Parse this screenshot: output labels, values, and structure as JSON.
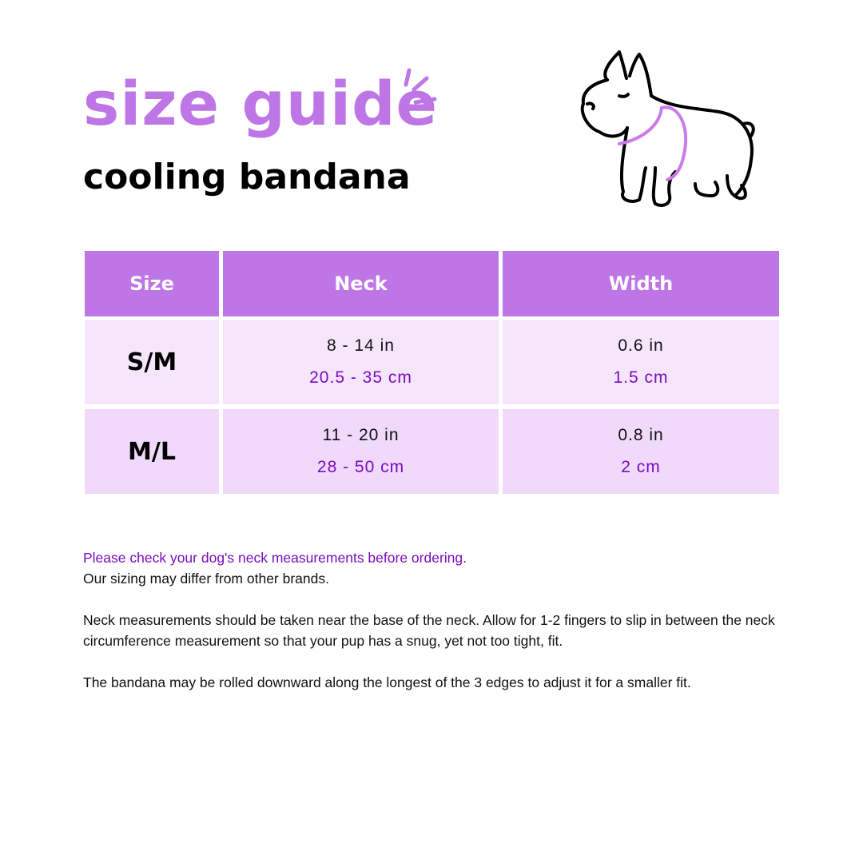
{
  "header": {
    "title": "size guide",
    "subtitle": "cooling bandana"
  },
  "icons": {
    "sparkle": "sparkle-lines-icon",
    "dog": "french-bulldog-illustration"
  },
  "colors": {
    "accent": "#BE76E6",
    "text_accent": "#7A0CBF",
    "row1": "#F6E6FC",
    "row2": "#F0D9FB"
  },
  "table": {
    "columns": [
      "Size",
      "Neck",
      "Width"
    ],
    "rows": [
      {
        "size": "S/M",
        "neck_in": "8 - 14 in",
        "neck_cm": "20.5 - 35 cm",
        "width_in": "0.6 in",
        "width_cm": "1.5 cm"
      },
      {
        "size": "M/L",
        "neck_in": "11 - 20 in",
        "neck_cm": "28 - 50 cm",
        "width_in": "0.8 in",
        "width_cm": "2 cm"
      }
    ]
  },
  "notes": {
    "highlight": "Please check your dog's neck measurements before ordering.",
    "line2": "Our sizing may differ from other brands.",
    "para2": "Neck measurements should be taken near the base of the neck. Allow for 1-2 fingers to slip in between the neck circumference measurement so that your pup has a snug, yet not too tight, fit.",
    "para3": "The bandana may be rolled downward along the longest of the 3 edges to adjust it for a smaller fit."
  }
}
